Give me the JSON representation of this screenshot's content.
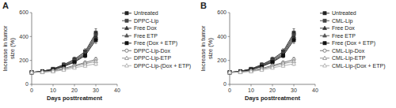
{
  "chart_data": [
    {
      "type": "line",
      "title": "A",
      "x_label": "Days posttreatment",
      "y_label": "Increase in tumor\nsize (%)",
      "x": [
        0,
        5,
        10,
        15,
        20,
        25,
        30
      ],
      "xlim": [
        0,
        40
      ],
      "xticks": [
        0,
        10,
        20,
        30,
        40
      ],
      "ylim": [
        0,
        600
      ],
      "yticks": [
        0,
        200,
        400,
        600
      ],
      "grid": false,
      "legend": "upper right",
      "series": [
        {
          "name": "Untreated",
          "color": "#222222",
          "marker": "square",
          "values": [
            100,
            110,
            130,
            165,
            210,
            275,
            430
          ],
          "errors": [
            0,
            7,
            11,
            14,
            18,
            22,
            35
          ]
        },
        {
          "name": "DPPC-Lip",
          "color": "#444444",
          "marker": "square",
          "values": [
            100,
            110,
            128,
            162,
            203,
            265,
            415
          ],
          "errors": [
            0,
            7,
            10,
            13,
            17,
            21,
            33
          ]
        },
        {
          "name": "Free Dox",
          "color": "#333333",
          "marker": "triangle",
          "values": [
            100,
            108,
            126,
            157,
            195,
            255,
            400
          ],
          "errors": [
            0,
            6,
            10,
            12,
            16,
            19,
            30
          ]
        },
        {
          "name": "Free ETP",
          "color": "#555555",
          "marker": "triangle",
          "values": [
            100,
            107,
            124,
            153,
            190,
            248,
            385
          ],
          "errors": [
            0,
            6,
            9,
            12,
            15,
            18,
            28
          ]
        },
        {
          "name": "Free (Dox + ETP)",
          "color": "#111111",
          "marker": "square",
          "values": [
            100,
            106,
            121,
            149,
            185,
            240,
            370
          ],
          "errors": [
            0,
            6,
            9,
            11,
            14,
            17,
            27
          ]
        },
        {
          "name": "DPPC-Lip-Dox",
          "color": "#666666",
          "marker": "circle-open",
          "values": [
            100,
            104,
            114,
            133,
            158,
            182,
            208
          ],
          "errors": [
            0,
            4,
            7,
            9,
            11,
            14,
            18
          ]
        },
        {
          "name": "DPPC-Lip-ETP",
          "color": "#888888",
          "marker": "triangle-open",
          "values": [
            100,
            103,
            111,
            128,
            150,
            172,
            192
          ],
          "errors": [
            0,
            4,
            6,
            8,
            10,
            12,
            16
          ]
        },
        {
          "name": "DPPC-Lip-(Dox + ETP)",
          "color": "#aaaaaa",
          "marker": "triangle-open",
          "values": [
            100,
            102,
            108,
            120,
            138,
            155,
            172
          ],
          "errors": [
            0,
            3,
            5,
            7,
            9,
            10,
            14
          ]
        }
      ]
    },
    {
      "type": "line",
      "title": "B",
      "x_label": "Days posttreatment",
      "y_label": "Increase in tumor\nsize (%)",
      "x": [
        0,
        5,
        10,
        15,
        20,
        25,
        30
      ],
      "xlim": [
        0,
        40
      ],
      "xticks": [
        0,
        10,
        20,
        30,
        40
      ],
      "ylim": [
        0,
        600
      ],
      "yticks": [
        0,
        200,
        400,
        600
      ],
      "grid": false,
      "legend": "upper right",
      "series": [
        {
          "name": "Untreated",
          "color": "#222222",
          "marker": "square",
          "values": [
            100,
            110,
            130,
            165,
            210,
            275,
            430
          ],
          "errors": [
            0,
            7,
            11,
            14,
            18,
            22,
            35
          ]
        },
        {
          "name": "CML-Lip",
          "color": "#444444",
          "marker": "square",
          "values": [
            100,
            110,
            128,
            162,
            203,
            265,
            415
          ],
          "errors": [
            0,
            7,
            10,
            13,
            17,
            21,
            33
          ]
        },
        {
          "name": "Free Dox",
          "color": "#333333",
          "marker": "triangle",
          "values": [
            100,
            108,
            126,
            157,
            195,
            255,
            400
          ],
          "errors": [
            0,
            6,
            10,
            12,
            16,
            19,
            30
          ]
        },
        {
          "name": "Free ETP",
          "color": "#555555",
          "marker": "triangle",
          "values": [
            100,
            107,
            124,
            153,
            190,
            248,
            385
          ],
          "errors": [
            0,
            6,
            9,
            12,
            15,
            18,
            28
          ]
        },
        {
          "name": "Free (Dox + ETP)",
          "color": "#111111",
          "marker": "square",
          "values": [
            100,
            106,
            121,
            149,
            185,
            240,
            370
          ],
          "errors": [
            0,
            6,
            9,
            11,
            14,
            17,
            27
          ]
        },
        {
          "name": "CML-Lip-Dox",
          "color": "#666666",
          "marker": "circle-open",
          "values": [
            100,
            104,
            114,
            133,
            158,
            182,
            208
          ],
          "errors": [
            0,
            4,
            7,
            9,
            11,
            14,
            18
          ]
        },
        {
          "name": "CML-Lip-ETP",
          "color": "#888888",
          "marker": "triangle-open",
          "values": [
            100,
            103,
            111,
            128,
            150,
            172,
            192
          ],
          "errors": [
            0,
            4,
            6,
            8,
            10,
            12,
            16
          ]
        },
        {
          "name": "CML-Lip-(Dox + ETP)",
          "color": "#aaaaaa",
          "marker": "triangle-open",
          "values": [
            100,
            102,
            108,
            120,
            138,
            155,
            172
          ],
          "errors": [
            0,
            3,
            5,
            7,
            9,
            10,
            14
          ]
        }
      ]
    }
  ]
}
